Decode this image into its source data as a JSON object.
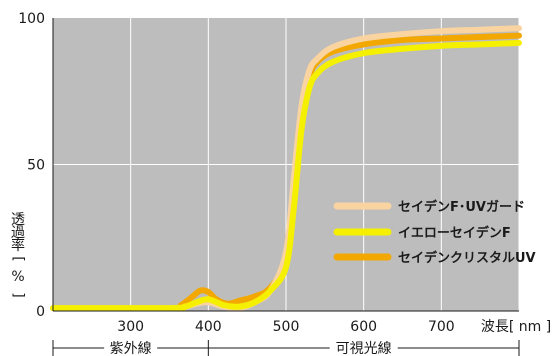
{
  "chart_data": {
    "type": "line",
    "xlabel": "波長[ nm ]",
    "ylabel": "透過率[ % ]",
    "xlim": [
      200,
      800
    ],
    "ylim": [
      0,
      100
    ],
    "xticks": [
      300,
      400,
      500,
      600,
      700
    ],
    "yticks": [
      0,
      50,
      100
    ],
    "grid": true,
    "background": "#bdbdbd",
    "legend_position": "right",
    "regions": [
      {
        "label": "紫外線",
        "from": 200,
        "to": 400
      },
      {
        "label": "可視光線",
        "from": 400,
        "to": 800
      }
    ],
    "series": [
      {
        "name": "セイデンF･UVガード",
        "color": "#f9d4a0",
        "x": [
          200,
          350,
          370,
          385,
          400,
          420,
          440,
          460,
          480,
          500,
          510,
          520,
          530,
          540,
          560,
          600,
          650,
          700,
          750,
          800
        ],
        "y": [
          1,
          1,
          1.5,
          2.5,
          3,
          1.5,
          1,
          3,
          7,
          20,
          45,
          70,
          82,
          86,
          90,
          93,
          94.5,
          95.5,
          96,
          96.5
        ]
      },
      {
        "name": "イエローセイデンF",
        "color": "#f5f000",
        "x": [
          200,
          350,
          370,
          385,
          400,
          420,
          440,
          460,
          480,
          500,
          510,
          520,
          530,
          540,
          560,
          600,
          650,
          700,
          750,
          800
        ],
        "y": [
          1,
          1,
          1.5,
          3,
          4,
          2,
          1.5,
          3,
          7,
          15,
          35,
          62,
          76,
          81,
          85,
          88,
          89.5,
          90.5,
          91,
          91.5
        ]
      },
      {
        "name": "セイデンクリスタルUV",
        "color": "#f2a800",
        "x": [
          200,
          350,
          365,
          380,
          390,
          400,
          410,
          425,
          440,
          460,
          480,
          500,
          510,
          520,
          530,
          540,
          560,
          600,
          650,
          700,
          750,
          800
        ],
        "y": [
          1,
          1,
          2,
          5,
          7,
          6.5,
          4,
          2.5,
          3.5,
          5,
          8,
          18,
          42,
          68,
          80,
          85,
          88.5,
          91,
          92.5,
          93,
          93.5,
          94
        ]
      }
    ]
  }
}
